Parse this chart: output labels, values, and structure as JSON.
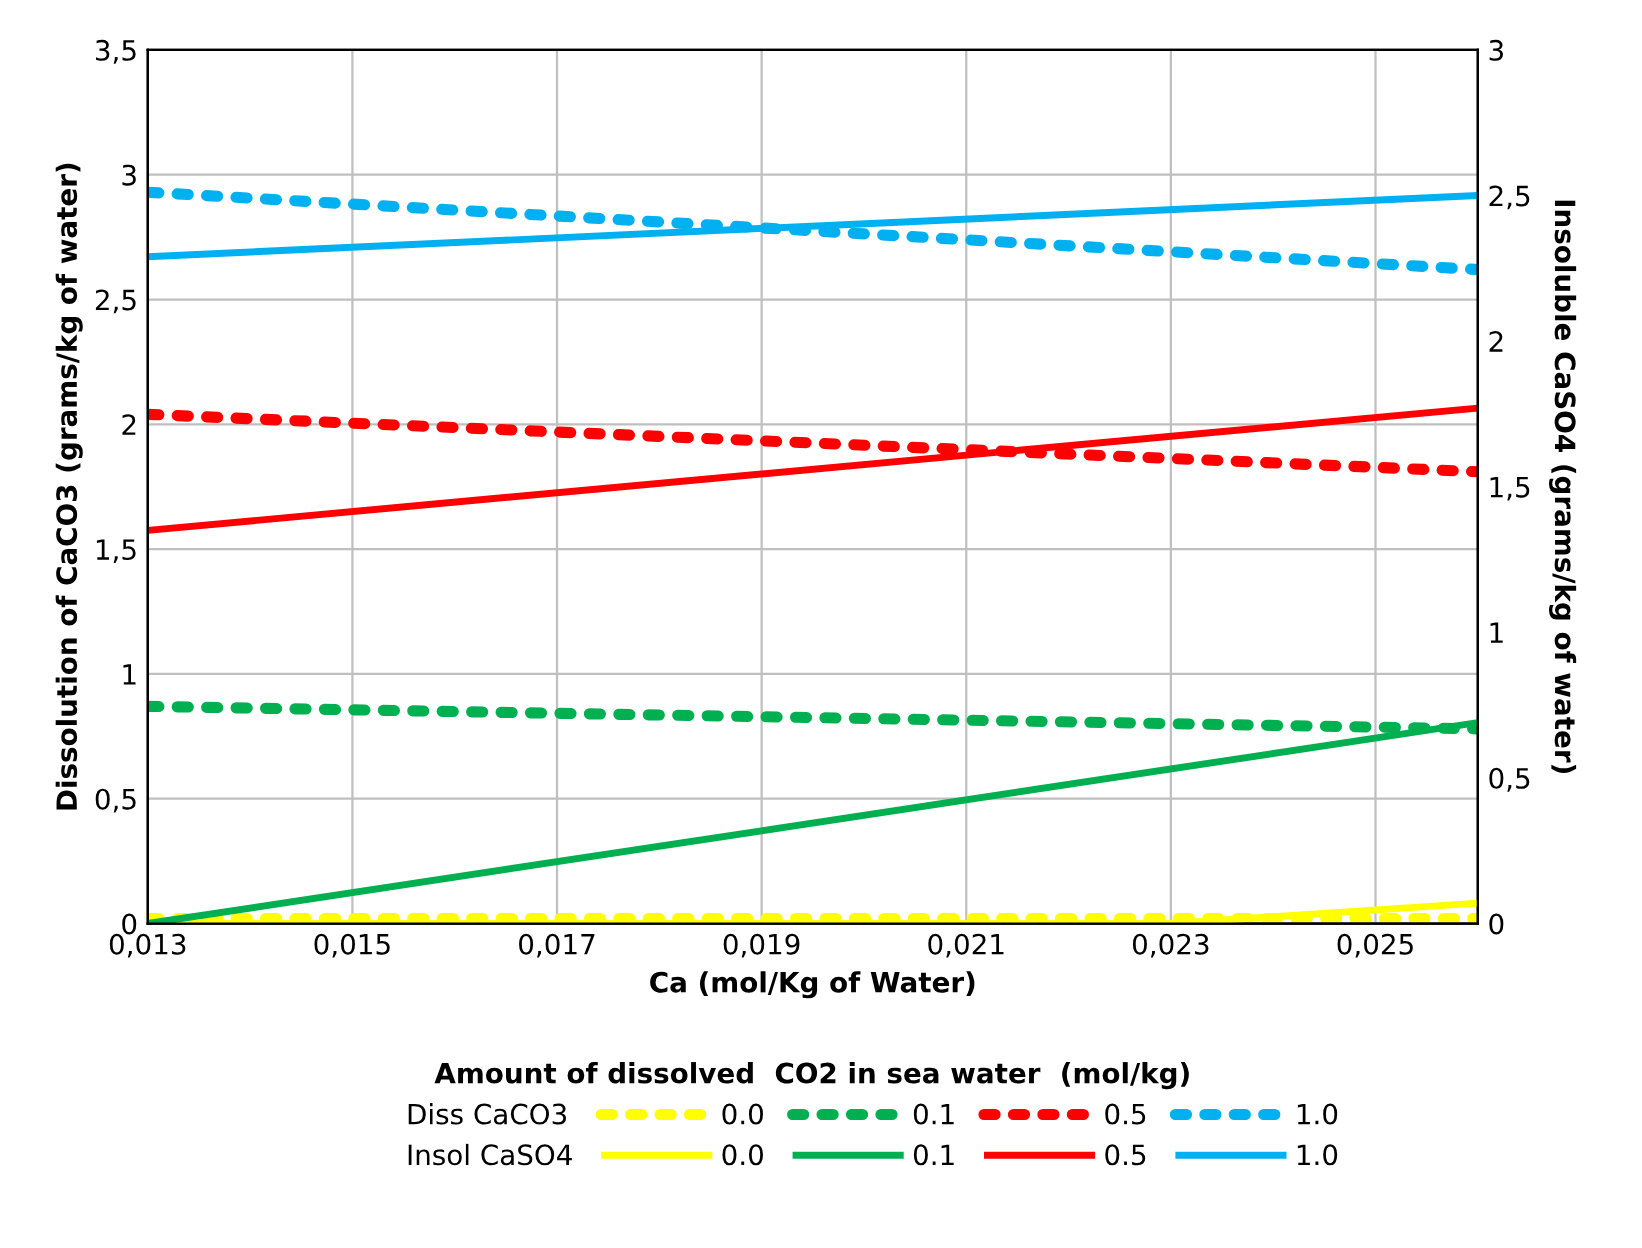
{
  "chart_data": {
    "type": "line",
    "xlabel": "Ca (mol/Kg of Water)",
    "ylabel": "Dissolution of CaCO3 (grams/kg of water)",
    "y2label": "Insoluble CaSO4 (grams/kg of water)",
    "legend_title": "Amount of dissolved  CO2 in sea water  (mol/kg)",
    "annotations": [
      "Diss CaCO3",
      "Insol CaSO4"
    ],
    "xlim": [
      0.013,
      0.026
    ],
    "xticks": [
      {
        "value": 0.013,
        "label": "0,013"
      },
      {
        "value": 0.015,
        "label": "0,015"
      },
      {
        "value": 0.017,
        "label": "0,017"
      },
      {
        "value": 0.019,
        "label": "0,019"
      },
      {
        "value": 0.021,
        "label": "0,021"
      },
      {
        "value": 0.023,
        "label": "0,023"
      },
      {
        "value": 0.025,
        "label": "0,025"
      }
    ],
    "ylim": [
      0,
      3.5
    ],
    "yticks": [
      0,
      {
        "value": 0.5,
        "label": "0,5"
      },
      1,
      {
        "value": 1.5,
        "label": "1,5"
      },
      2,
      {
        "value": 2.5,
        "label": "2,5"
      },
      3,
      {
        "value": 3.5,
        "label": "3,5"
      }
    ],
    "y2lim": [
      0,
      3
    ],
    "y2ticks": [
      0,
      {
        "value": 0.5,
        "label": "0,5"
      },
      1,
      {
        "value": 1.5,
        "label": "1,5"
      },
      2,
      {
        "value": 2.5,
        "label": "2,5"
      },
      3
    ],
    "grid": true,
    "legend": "bottom",
    "marker": "none",
    "series": [
      {
        "name": "0.0",
        "color": "#ffff00",
        "axis": "y",
        "line_style": "dotted",
        "x": [
          0.013,
          0.026
        ],
        "values": [
          0.02,
          0.02
        ]
      },
      {
        "name": "0.0",
        "color": "#ffff00",
        "axis": "y2",
        "line_style": "solid",
        "x": [
          0.013,
          0.023,
          0.026
        ],
        "values": [
          0,
          0,
          0.07
        ]
      },
      {
        "name": "0.1",
        "color": "#00b050",
        "axis": "y",
        "line_style": "dotted",
        "x": [
          0.013,
          0.026
        ],
        "values": [
          0.87,
          0.78
        ]
      },
      {
        "name": "0.1",
        "color": "#00b050",
        "axis": "y2",
        "line_style": "solid",
        "x": [
          0.013,
          0.026
        ],
        "values": [
          0,
          0.69
        ]
      },
      {
        "name": "0.5",
        "color": "#ff0000",
        "axis": "y",
        "line_style": "dotted",
        "x": [
          0.013,
          0.026
        ],
        "values": [
          2.04,
          1.81
        ]
      },
      {
        "name": "0.5",
        "color": "#ff0000",
        "axis": "y2",
        "line_style": "solid",
        "x": [
          0.013,
          0.026
        ],
        "values": [
          1.35,
          1.77
        ]
      },
      {
        "name": "1.0",
        "color": "#00b0f0",
        "axis": "y",
        "line_style": "dotted",
        "x": [
          0.013,
          0.026
        ],
        "values": [
          2.93,
          2.62
        ]
      },
      {
        "name": "1.0",
        "color": "#00b0f0",
        "axis": "y2",
        "line_style": "solid",
        "x": [
          0.013,
          0.026
        ],
        "values": [
          2.29,
          2.5
        ]
      }
    ]
  }
}
